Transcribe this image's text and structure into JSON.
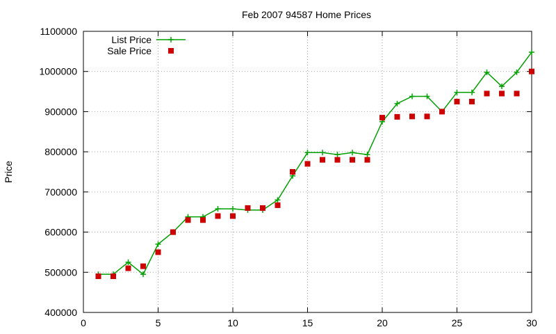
{
  "chart_data": {
    "type": "line",
    "title": "Feb 2007 94587 Home Prices",
    "xlabel": "",
    "ylabel": "Price",
    "xlim": [
      0,
      30
    ],
    "ylim": [
      400000,
      1100000
    ],
    "xticks": [
      0,
      5,
      10,
      15,
      20,
      25,
      30
    ],
    "yticks": [
      400000,
      500000,
      600000,
      700000,
      800000,
      900000,
      1000000,
      1100000
    ],
    "grid": true,
    "legend_position": "top-left",
    "series": [
      {
        "name": "List Price",
        "style": "line-with-cross-markers",
        "color": "#00a000",
        "x": [
          1,
          2,
          3,
          4,
          5,
          6,
          7,
          8,
          9,
          10,
          11,
          12,
          13,
          14,
          15,
          16,
          17,
          18,
          19,
          20,
          21,
          22,
          23,
          24,
          25,
          26,
          27,
          28,
          29,
          30
        ],
        "values": [
          495000,
          495000,
          525000,
          495000,
          570000,
          600000,
          638000,
          638000,
          658000,
          658000,
          655000,
          655000,
          680000,
          740000,
          798000,
          798000,
          793000,
          798000,
          793000,
          875000,
          920000,
          938000,
          938000,
          900000,
          948000,
          948000,
          998000,
          963000,
          998000,
          1048000
        ]
      },
      {
        "name": "Sale Price",
        "style": "square-markers",
        "color": "#cc0000",
        "x": [
          1,
          2,
          3,
          4,
          5,
          6,
          7,
          8,
          9,
          10,
          11,
          12,
          13,
          14,
          15,
          16,
          17,
          18,
          19,
          20,
          21,
          22,
          23,
          24,
          25,
          26,
          27,
          28,
          29,
          30
        ],
        "values": [
          490000,
          490000,
          510000,
          515000,
          550000,
          600000,
          630000,
          630000,
          640000,
          640000,
          660000,
          660000,
          667000,
          750000,
          770000,
          780000,
          780000,
          780000,
          780000,
          885000,
          887000,
          888000,
          888000,
          900000,
          925000,
          925000,
          945000,
          945000,
          945000,
          1000000
        ]
      }
    ]
  }
}
